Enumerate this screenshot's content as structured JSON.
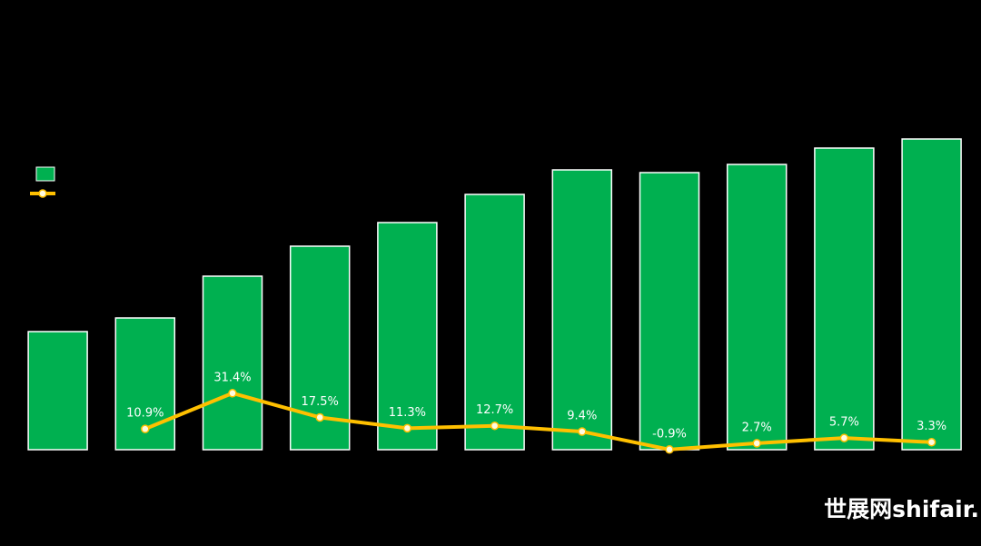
{
  "chart_data": {
    "type": "bar",
    "ylim": [
      0,
      455
    ],
    "y2lim": [
      -1,
      236
    ],
    "legend": "left",
    "series": [
      {
        "type": "bar",
        "color": "#00b050",
        "values": [
          130,
          145,
          191,
          224,
          250,
          281,
          308,
          305,
          314,
          332,
          342
        ]
      },
      {
        "type": "line",
        "axis": "y2",
        "color": "#ffc000",
        "values": [
          null,
          10.9,
          31.4,
          17.5,
          11.3,
          12.7,
          9.4,
          -0.9,
          2.7,
          5.7,
          3.3
        ],
        "value_labels": [
          null,
          "10.9%",
          "31.4%",
          "17.5%",
          "11.3%",
          "12.7%",
          "9.4%",
          "-0.9%",
          "2.7%",
          "5.7%",
          "3.3%"
        ]
      }
    ]
  },
  "watermark": "世展网shifair."
}
